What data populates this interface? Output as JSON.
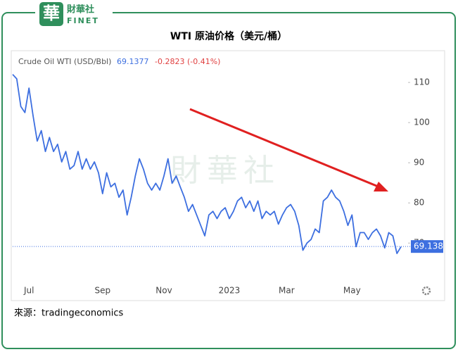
{
  "header": {
    "logo": "財華社",
    "logo_sub": "FINET"
  },
  "chart_data": {
    "type": "line",
    "title": "WTI 原油价格（美元/桶）",
    "series_label": "Crude Oil WTI (USD/Bbl)",
    "last_price": 69.1377,
    "change": "-0.2823 (-0.41%)",
    "last_value_label": 69.138,
    "categories": [
      null,
      null,
      null,
      null,
      "Jul",
      null,
      null,
      null,
      null,
      null,
      null,
      null,
      null,
      null,
      null,
      null,
      null,
      null,
      null,
      null,
      null,
      null,
      "Sep",
      null,
      null,
      null,
      null,
      null,
      null,
      null,
      null,
      null,
      null,
      null,
      null,
      null,
      null,
      "Nov",
      null,
      null,
      null,
      null,
      null,
      null,
      null,
      null,
      null,
      null,
      null,
      null,
      null,
      null,
      null,
      "2023",
      null,
      null,
      null,
      null,
      null,
      null,
      null,
      null,
      null,
      null,
      null,
      null,
      null,
      "Mar",
      null,
      null,
      null,
      null,
      null,
      null,
      null,
      null,
      null,
      null,
      null,
      null,
      null,
      null,
      null,
      "May",
      null,
      null,
      null,
      null,
      null,
      null,
      null,
      null,
      null,
      null,
      null,
      null
    ],
    "series": [
      {
        "name": "Crude Oil WTI",
        "color": "#3d6fe0",
        "values": [
          112,
          110.9,
          104,
          102.5,
          108.6,
          101.6,
          95.4,
          98,
          92.8,
          96.3,
          92.8,
          94.6,
          90.2,
          92.8,
          88.4,
          89.3,
          92.8,
          88.4,
          91,
          88.4,
          90.2,
          87.5,
          82.3,
          87.5,
          84,
          84.9,
          81.4,
          83.2,
          77,
          81.4,
          86.7,
          91,
          88.4,
          84.9,
          83.2,
          84.9,
          83.2,
          86.7,
          91,
          84.9,
          86.7,
          84,
          81.4,
          77.9,
          79.6,
          77,
          74.4,
          71.8,
          77,
          77.9,
          76.1,
          77.9,
          78.8,
          76.1,
          77.9,
          80.5,
          81.4,
          78.8,
          80.5,
          77.9,
          80.5,
          76.1,
          77.9,
          77,
          77.9,
          74.7,
          77,
          78.8,
          79.6,
          77.9,
          74.4,
          68.2,
          70,
          70.9,
          73.5,
          72.6,
          80.5,
          81.4,
          83.2,
          81.4,
          80.5,
          77.9,
          74.4,
          77,
          69.1,
          72.6,
          72.6,
          70.9,
          72.6,
          73.5,
          71.8,
          68.8,
          72.6,
          71.8,
          67.4,
          69.1
        ]
      }
    ],
    "ylim": [
      60.4,
      113
    ],
    "yticks": [
      70,
      80,
      90,
      100,
      110
    ],
    "grid": false
  },
  "source": "來源：tradingeconomics"
}
